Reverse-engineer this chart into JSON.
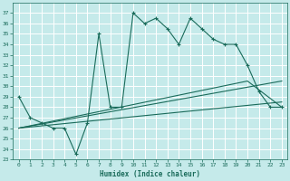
{
  "xlabel": "Humidex (Indice chaleur)",
  "xlim": [
    -0.5,
    23.5
  ],
  "ylim": [
    23,
    38
  ],
  "yticks": [
    23,
    24,
    25,
    26,
    27,
    28,
    29,
    30,
    31,
    32,
    33,
    34,
    35,
    36,
    37
  ],
  "xticks": [
    0,
    1,
    2,
    3,
    4,
    5,
    6,
    7,
    8,
    9,
    10,
    11,
    12,
    13,
    14,
    15,
    16,
    17,
    18,
    19,
    20,
    21,
    22,
    23
  ],
  "background_color": "#c5eaea",
  "grid_color": "#ffffff",
  "line_color": "#1a6b5a",
  "main_line": {
    "x": [
      0,
      1,
      2,
      3,
      4,
      5,
      6,
      7,
      8,
      9,
      10,
      11,
      12,
      13,
      14,
      15,
      16,
      17,
      18,
      19,
      20,
      21,
      22,
      23
    ],
    "y": [
      29,
      27,
      26.5,
      26,
      26,
      23.5,
      26.5,
      35,
      28,
      28,
      37,
      36,
      36.5,
      35.5,
      34,
      36.5,
      35.5,
      34.5,
      34,
      34,
      32,
      29.5,
      28,
      28
    ]
  },
  "trend_lines": [
    {
      "x0": 0,
      "y0": 26,
      "x1": 23,
      "y1": 28.5
    },
    {
      "x0": 0,
      "y0": 26,
      "x1": 23,
      "y1": 30.5
    },
    {
      "x0": 0,
      "y0": 26,
      "x1": 20,
      "y1": 30.5,
      "x2": 23,
      "y2": 28
    }
  ]
}
